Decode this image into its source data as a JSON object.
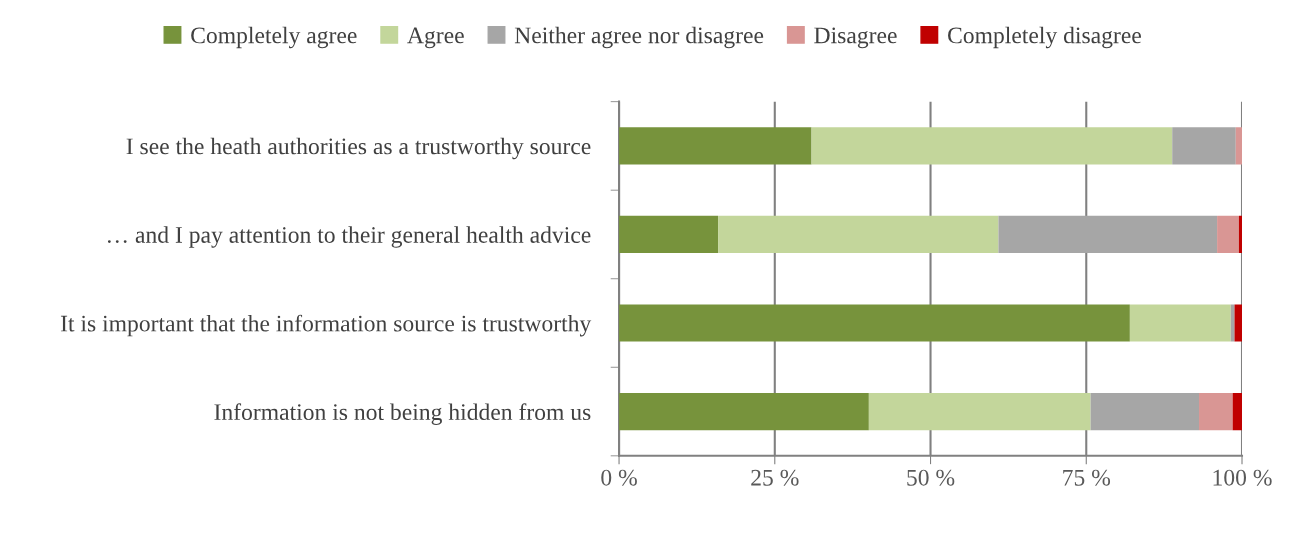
{
  "chart_data": {
    "type": "bar",
    "orientation": "horizontal",
    "stacked": true,
    "categories": [
      "I see the heath authorities as a trustworthy source",
      "… and I pay attention to their general health advice",
      "It is important that the information source is trustworthy",
      "Information is not being hidden from us"
    ],
    "series": [
      {
        "name": "Completely agree",
        "color": "#77933c",
        "values": [
          30.9,
          15.9,
          82.0,
          40.1
        ]
      },
      {
        "name": "Agree",
        "color": "#c3d69b",
        "values": [
          57.9,
          45.0,
          16.2,
          35.6
        ]
      },
      {
        "name": "Neither agree nor disagree",
        "color": "#a6a6a6",
        "values": [
          10.2,
          35.1,
          0.6,
          17.4
        ]
      },
      {
        "name": "Disagree",
        "color": "#d99694",
        "values": [
          1.0,
          3.5,
          0,
          5.4
        ]
      },
      {
        "name": "Completely disagree",
        "color": "#c00000",
        "values": [
          0,
          0.5,
          1.2,
          1.5
        ]
      }
    ],
    "xlim": [
      0,
      100
    ],
    "xticks": [
      {
        "value": 0,
        "label": "0 %"
      },
      {
        "value": 25,
        "label": "25 %"
      },
      {
        "value": 50,
        "label": "50 %"
      },
      {
        "value": 75,
        "label": "75 %"
      },
      {
        "value": 100,
        "label": "100 %"
      }
    ],
    "grid": "x",
    "legend": "top"
  }
}
